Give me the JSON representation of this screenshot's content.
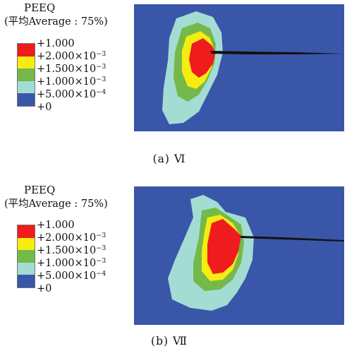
{
  "panels": [
    {
      "legend": {
        "title": "PEEQ",
        "subtitle": "(平均Average : 75%)",
        "levels": [
          {
            "label": "+1.000",
            "exp": "",
            "color": "#ee1c1c"
          },
          {
            "label": "+2.000×10",
            "exp": "−3",
            "color": "#f6ec12"
          },
          {
            "label": "+1.500×10",
            "exp": "−3",
            "color": "#74b94a"
          },
          {
            "label": "+1.000×10",
            "exp": "−3",
            "color": "#a3dcd3"
          },
          {
            "label": "+5.000×10",
            "exp": "−4",
            "color": "#3a56a8"
          },
          {
            "label": "+0",
            "exp": "",
            "color": "#3a56a8"
          }
        ]
      },
      "caption": "(a) Ⅵ"
    },
    {
      "legend": {
        "title": "PEEQ",
        "subtitle": "(平均Average : 75%)",
        "levels": [
          {
            "label": "+1.000",
            "exp": "",
            "color": "#ee1c1c"
          },
          {
            "label": "+2.000×10",
            "exp": "−3",
            "color": "#f6ec12"
          },
          {
            "label": "+1.500×10",
            "exp": "−3",
            "color": "#74b94a"
          },
          {
            "label": "+1.000×10",
            "exp": "−3",
            "color": "#a3dcd3"
          },
          {
            "label": "+5.000×10",
            "exp": "−4",
            "color": "#3a56a8"
          },
          {
            "label": "+0",
            "exp": "",
            "color": "#3a56a8"
          }
        ]
      },
      "caption": "(b) Ⅶ"
    }
  ],
  "colors": {
    "background_blue": "#3a56a8",
    "cyan": "#a3dcd3",
    "green": "#74b94a",
    "yellow": "#f6ec12",
    "red": "#ee1c1c",
    "crack": "#111111"
  }
}
